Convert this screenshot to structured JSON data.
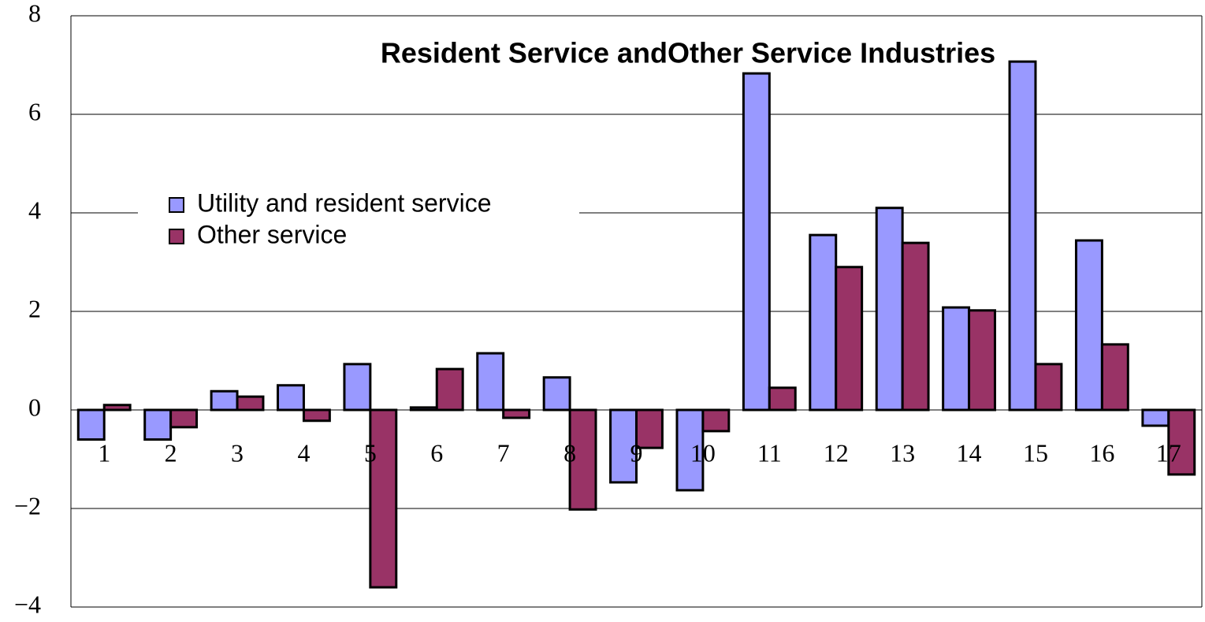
{
  "chart_data": {
    "type": "bar",
    "title": "Resident Service andOther Service Industries",
    "categories": [
      "1",
      "2",
      "3",
      "4",
      "5",
      "6",
      "7",
      "8",
      "9",
      "10",
      "11",
      "12",
      "13",
      "14",
      "15",
      "16",
      "17"
    ],
    "series": [
      {
        "name": "Utility and resident service",
        "color": "#9999ff",
        "values": [
          -0.6,
          -0.6,
          0.38,
          0.5,
          0.93,
          0.05,
          1.15,
          0.66,
          -1.47,
          -1.63,
          6.83,
          3.55,
          4.1,
          2.08,
          7.07,
          3.44,
          -0.32
        ]
      },
      {
        "name": "Other service",
        "color": "#993366",
        "values": [
          0.1,
          -0.35,
          0.27,
          -0.22,
          -3.6,
          0.83,
          -0.16,
          -2.02,
          -0.77,
          -0.43,
          0.45,
          2.9,
          3.39,
          2.02,
          0.93,
          1.33,
          -1.31
        ]
      }
    ],
    "ylim": [
      -4,
      8
    ],
    "yticks": [
      {
        "value": -4,
        "label": "−4"
      },
      {
        "value": -2,
        "label": "−2"
      },
      0,
      2,
      4,
      6,
      8
    ],
    "grid": true,
    "legend": "left"
  }
}
